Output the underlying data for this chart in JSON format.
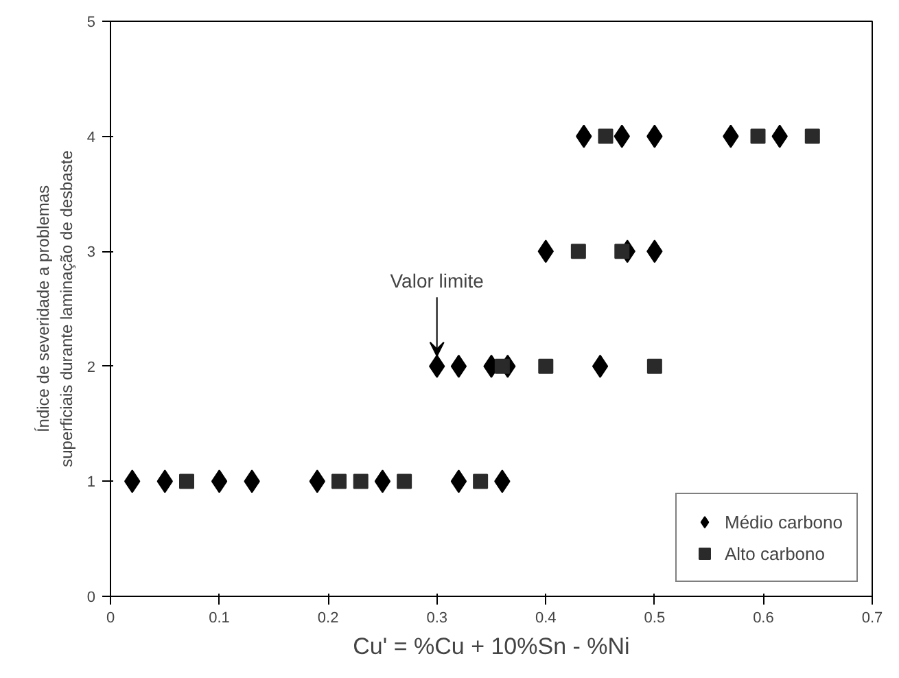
{
  "chart_data": {
    "type": "scatter",
    "xlabel": "Cu' = %Cu + 10%Sn - %Ni",
    "ylabel": "Índice de severidade a problemas\nsuperficiais durante laminação de desbaste",
    "xlim": [
      0,
      0.7
    ],
    "ylim": [
      0,
      5
    ],
    "xticks": [
      0,
      {
        "value": 0.1,
        "label": "0.1"
      },
      {
        "value": 0.2,
        "label": "0.2"
      },
      {
        "value": 0.3,
        "label": "0.3"
      },
      {
        "value": 0.4,
        "label": "0.4"
      },
      {
        "value": 0.5,
        "label": "0.5"
      },
      {
        "value": 0.6,
        "label": "0.6"
      },
      {
        "value": 0.7,
        "label": "0.7"
      }
    ],
    "yticks": [
      0,
      1,
      2,
      3,
      4,
      5
    ],
    "grid": false,
    "legend": "bottom right",
    "series": [
      {
        "name": "Médio carbono",
        "color": "#000000",
        "marker": "diamond",
        "x": [
          0.02,
          0.05,
          0.1,
          0.13,
          0.19,
          0.25,
          0.32,
          0.36,
          0.3,
          0.32,
          0.35,
          0.365,
          0.45,
          0.4,
          0.475,
          0.5,
          0.435,
          0.47,
          0.5,
          0.57,
          0.615
        ],
        "values": [
          1,
          1,
          1,
          1,
          1,
          1,
          1,
          1,
          2,
          2,
          2,
          2,
          2,
          3,
          3,
          3,
          4,
          4,
          4,
          4,
          4
        ]
      },
      {
        "name": "Alto carbono",
        "color": "#2a2a2a",
        "marker": "square",
        "x": [
          0.07,
          0.21,
          0.23,
          0.27,
          0.34,
          0.36,
          0.4,
          0.5,
          0.43,
          0.47,
          0.455,
          0.595,
          0.645
        ],
        "values": [
          1,
          1,
          1,
          1,
          1,
          2,
          2,
          2,
          3,
          3,
          4,
          4,
          4
        ]
      }
    ],
    "annotations": [
      {
        "text": "Valor limite",
        "x": 0.3,
        "y": 2
      }
    ]
  }
}
